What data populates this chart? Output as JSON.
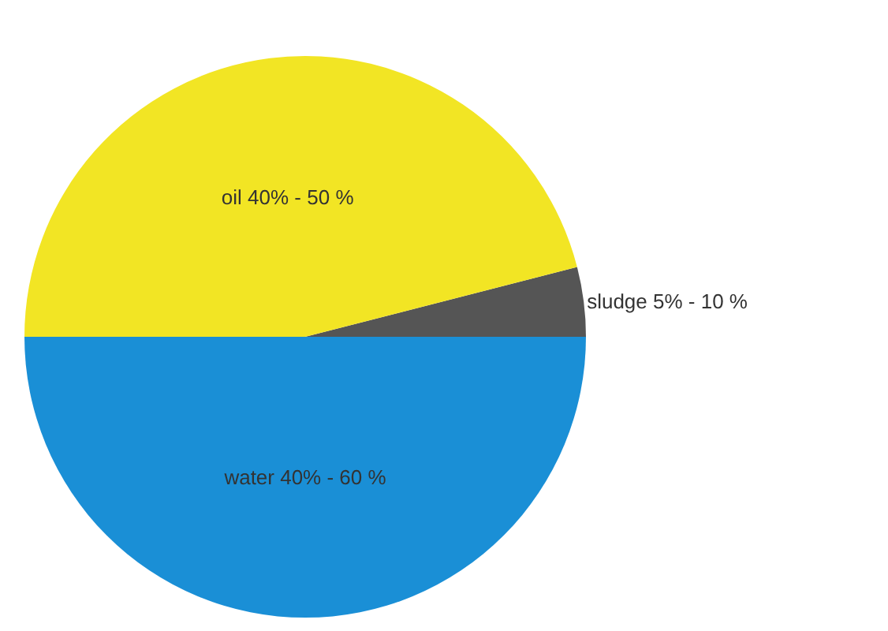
{
  "chart_data": {
    "type": "pie",
    "categories": [
      "sludge 5% - 10 %",
      "oil 40% - 50 %",
      "water 40% - 60 %"
    ],
    "values": [
      4,
      46,
      50
    ],
    "colors": [
      "#555555",
      "#f2e524",
      "#1a8fd6"
    ]
  }
}
